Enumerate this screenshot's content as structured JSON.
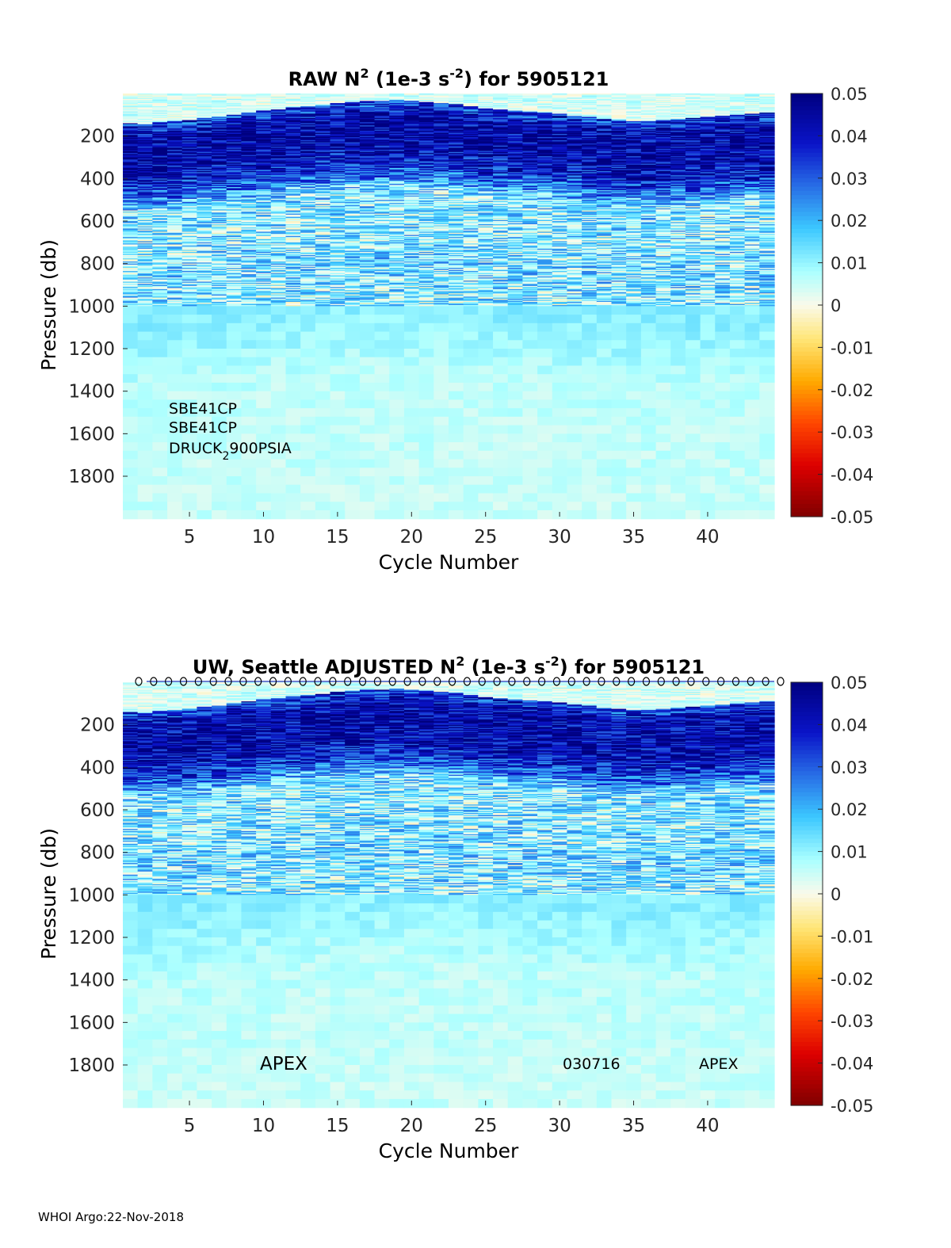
{
  "chart_data": [
    {
      "type": "heatmap",
      "title": "RAW N",
      "title_sup": "2",
      "title_mid": " (1e-3 s",
      "title_sup2": "-2",
      "title_end": ") for 5905121",
      "xlabel": "Cycle Number",
      "ylabel": "Pressure (db)",
      "xlim": [
        1,
        44
      ],
      "ylim": [
        1990,
        0
      ],
      "xticks": [
        "5",
        "10",
        "15",
        "20",
        "25",
        "30",
        "35",
        "40"
      ],
      "yticks": [
        "200",
        "400",
        "600",
        "800",
        "1000",
        "1200",
        "1400",
        "1600",
        "1800"
      ],
      "colorbar": {
        "min": -0.05,
        "max": 0.05,
        "ticks": [
          "0.05",
          "0.04",
          "0.03",
          "0.02",
          "0.01",
          "0",
          "-0.01",
          "-0.02",
          "-0.03",
          "-0.04",
          "-0.05"
        ]
      },
      "annotations": [
        "SBE41CP",
        "SBE41CP",
        "DRUCK",
        "2",
        "900PSIA"
      ],
      "cycles": 44,
      "mixed_layer_base_db": [
        175,
        180,
        170,
        165,
        160,
        150,
        145,
        135,
        125,
        115,
        110,
        100,
        95,
        90,
        80,
        75,
        70,
        70,
        65,
        70,
        75,
        80,
        85,
        95,
        105,
        110,
        115,
        120,
        125,
        130,
        140,
        145,
        155,
        160,
        165,
        165,
        160,
        155,
        150,
        145,
        140,
        135,
        130,
        125
      ],
      "profile_db": [
        0,
        50,
        150,
        200,
        300,
        400,
        480,
        550,
        700,
        900,
        1000,
        1100,
        1400,
        1990
      ],
      "profile_n2": [
        0.003,
        0.004,
        0.035,
        0.044,
        0.045,
        0.04,
        0.028,
        0.012,
        0.011,
        0.013,
        0.011,
        0.011,
        0.006,
        0.005
      ],
      "show_markers": false
    },
    {
      "type": "heatmap",
      "title": "UW, Seattle  ADJUSTED N",
      "title_sup": "2",
      "title_mid": " (1e-3 s",
      "title_sup2": "-2",
      "title_end": ") for 5905121",
      "xlabel": "Cycle Number",
      "ylabel": "Pressure (db)",
      "xlim": [
        1,
        44
      ],
      "ylim": [
        1990,
        0
      ],
      "xticks": [
        "5",
        "10",
        "15",
        "20",
        "25",
        "30",
        "35",
        "40"
      ],
      "yticks": [
        "200",
        "400",
        "600",
        "800",
        "1000",
        "1200",
        "1400",
        "1600",
        "1800"
      ],
      "colorbar": {
        "min": -0.05,
        "max": 0.05,
        "ticks": [
          "0.05",
          "0.04",
          "0.03",
          "0.02",
          "0.01",
          "0",
          "-0.01",
          "-0.02",
          "-0.03",
          "-0.04",
          "-0.05"
        ]
      },
      "annotations": [
        "APEX",
        "030716",
        "APEX"
      ],
      "cycles": 44,
      "mixed_layer_base_db": [
        175,
        180,
        170,
        165,
        160,
        150,
        145,
        135,
        125,
        115,
        110,
        100,
        95,
        90,
        80,
        75,
        70,
        70,
        65,
        70,
        75,
        80,
        85,
        95,
        105,
        110,
        115,
        120,
        125,
        130,
        140,
        145,
        155,
        160,
        165,
        165,
        160,
        155,
        150,
        145,
        140,
        135,
        130,
        125
      ],
      "profile_db": [
        0,
        50,
        150,
        200,
        300,
        400,
        480,
        550,
        700,
        900,
        1000,
        1100,
        1400,
        1990
      ],
      "profile_n2": [
        0.003,
        0.004,
        0.035,
        0.044,
        0.045,
        0.04,
        0.028,
        0.012,
        0.011,
        0.013,
        0.011,
        0.011,
        0.006,
        0.005
      ],
      "show_markers": true,
      "marker_glyph": "o"
    }
  ],
  "footer": "WHOI Argo:22-Nov-2018"
}
